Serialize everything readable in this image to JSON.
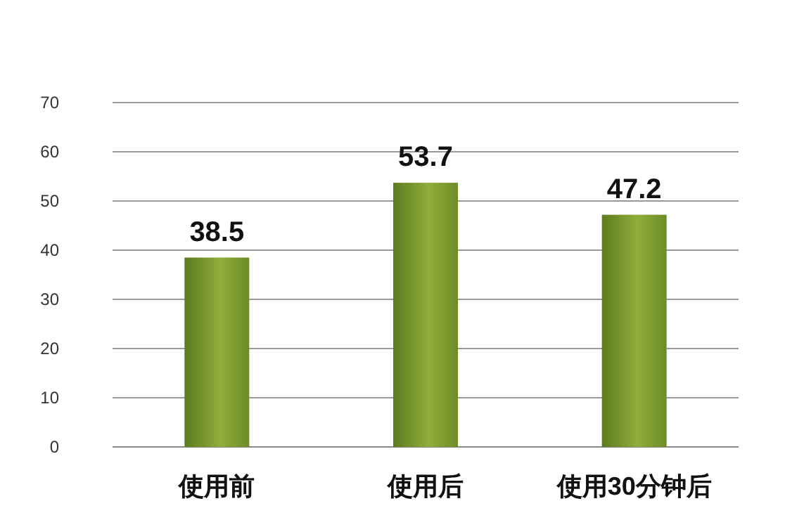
{
  "chart_data": {
    "type": "bar",
    "categories": [
      "使用前",
      "使用后",
      "使用30分钟后"
    ],
    "values": [
      38.5,
      53.7,
      47.2
    ],
    "color": "#8fae3a",
    "ylim": [
      0,
      70
    ],
    "yticks": [
      0,
      10,
      20,
      30,
      40,
      50,
      60,
      70
    ],
    "grid": "y",
    "data_labels": true
  }
}
